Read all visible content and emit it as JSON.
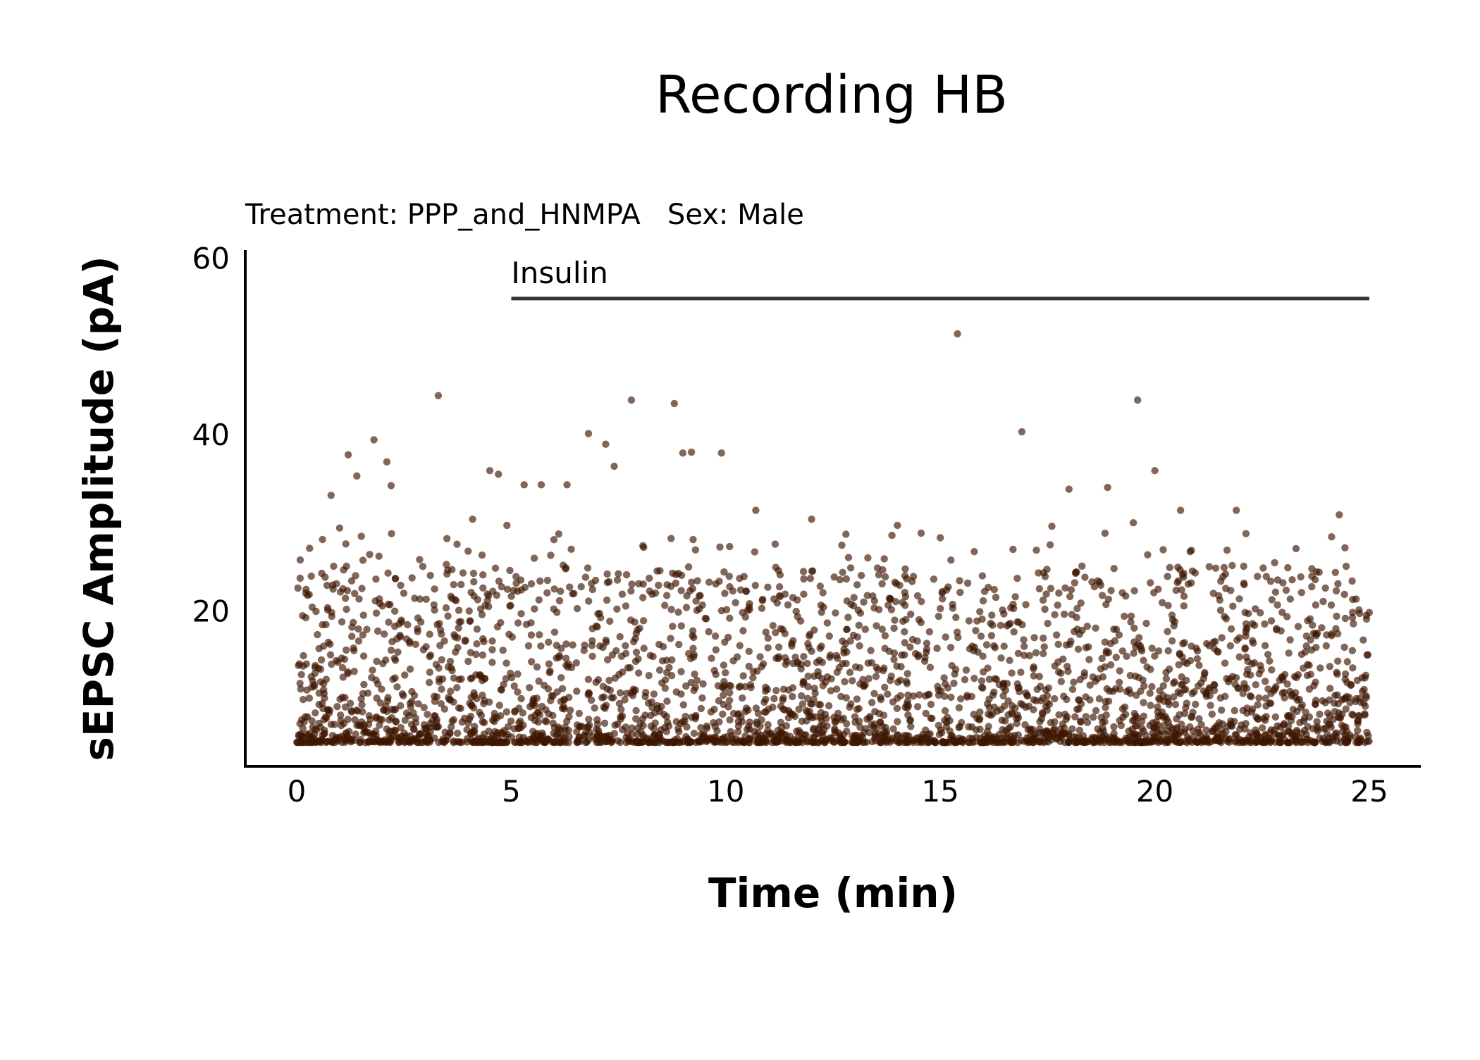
{
  "chart_data": {
    "type": "scatter",
    "title": "Recording HB",
    "subtitle": "Treatment: PPP_and_HNMPA   Sex: Male",
    "xlabel": "Time (min)",
    "ylabel": "sEPSC Amplitude (pA)",
    "xlim": [
      -1.2,
      26.2
    ],
    "ylim": [
      2.5,
      61
    ],
    "xticks": [
      0,
      5,
      10,
      15,
      20,
      25
    ],
    "yticks": [
      20,
      40,
      60
    ],
    "grid": false,
    "legend": "none",
    "point_color": "#3d1500",
    "point_opacity": 0.65,
    "annotation": {
      "label": "Insulin",
      "x_start": 5,
      "x_end": 25,
      "y": 55.5
    },
    "series": [
      {
        "notable_points": [
          {
            "x": 0.3,
            "y": 27.2
          },
          {
            "x": 0.6,
            "y": 28.2
          },
          {
            "x": 0.8,
            "y": 33.2
          },
          {
            "x": 1.0,
            "y": 29.5
          },
          {
            "x": 1.2,
            "y": 37.8
          },
          {
            "x": 1.4,
            "y": 35.4
          },
          {
            "x": 1.7,
            "y": 26.5
          },
          {
            "x": 1.8,
            "y": 39.5
          },
          {
            "x": 2.1,
            "y": 37.0
          },
          {
            "x": 2.2,
            "y": 34.3
          },
          {
            "x": 3.3,
            "y": 44.5
          },
          {
            "x": 3.5,
            "y": 28.3
          },
          {
            "x": 4.1,
            "y": 30.5
          },
          {
            "x": 4.5,
            "y": 36.0
          },
          {
            "x": 4.7,
            "y": 35.6
          },
          {
            "x": 4.9,
            "y": 29.8
          },
          {
            "x": 5.3,
            "y": 34.4
          },
          {
            "x": 5.7,
            "y": 34.4
          },
          {
            "x": 6.3,
            "y": 34.4
          },
          {
            "x": 6.8,
            "y": 40.2
          },
          {
            "x": 7.2,
            "y": 39.0
          },
          {
            "x": 7.4,
            "y": 36.5
          },
          {
            "x": 7.8,
            "y": 44.0
          },
          {
            "x": 8.8,
            "y": 43.6
          },
          {
            "x": 9.0,
            "y": 38.0
          },
          {
            "x": 9.2,
            "y": 38.1
          },
          {
            "x": 9.9,
            "y": 38.0
          },
          {
            "x": 10.7,
            "y": 31.5
          },
          {
            "x": 12.0,
            "y": 30.5
          },
          {
            "x": 12.8,
            "y": 28.8
          },
          {
            "x": 14.0,
            "y": 29.8
          },
          {
            "x": 15.0,
            "y": 28.4
          },
          {
            "x": 15.4,
            "y": 51.5
          },
          {
            "x": 16.9,
            "y": 40.4
          },
          {
            "x": 17.6,
            "y": 29.7
          },
          {
            "x": 18.0,
            "y": 33.9
          },
          {
            "x": 18.9,
            "y": 34.1
          },
          {
            "x": 19.5,
            "y": 30.1
          },
          {
            "x": 19.6,
            "y": 44.0
          },
          {
            "x": 20.0,
            "y": 36.0
          },
          {
            "x": 20.6,
            "y": 31.5
          },
          {
            "x": 21.9,
            "y": 31.5
          },
          {
            "x": 22.6,
            "y": 24.0
          },
          {
            "x": 23.1,
            "y": 25.0
          },
          {
            "x": 24.3,
            "y": 31.0
          },
          {
            "x": 24.6,
            "y": 23.5
          }
        ]
      }
    ]
  }
}
